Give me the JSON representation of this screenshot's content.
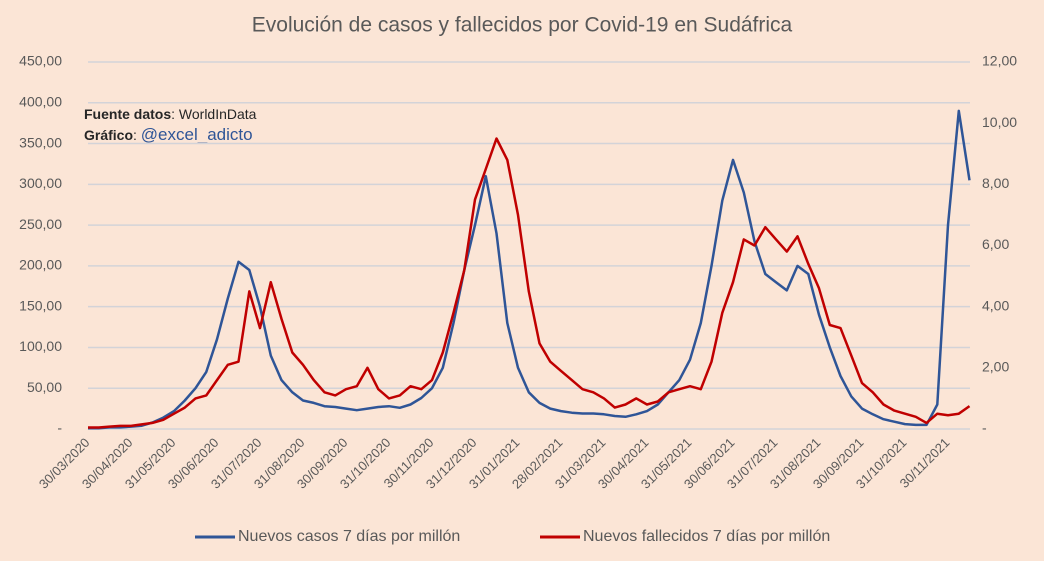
{
  "chart_data": {
    "type": "line",
    "title": "Evolución de casos y fallecidos por Covid-19 en Sudáfrica",
    "annotations": [
      {
        "label": "Fuente datos",
        "text": ": WorldInData"
      },
      {
        "label": "Gráfico",
        "text": ": ",
        "handle": "@excel_adicto"
      }
    ],
    "categories": [
      "30/03/2020",
      null,
      null,
      null,
      "30/04/2020",
      null,
      null,
      null,
      "31/05/2020",
      null,
      null,
      null,
      "30/06/2020",
      null,
      null,
      null,
      "31/07/2020",
      null,
      null,
      null,
      "31/08/2020",
      null,
      null,
      null,
      "30/09/2020",
      null,
      null,
      null,
      "31/10/2020",
      null,
      null,
      null,
      "30/11/2020",
      null,
      null,
      null,
      "31/12/2020",
      null,
      null,
      null,
      "31/01/2021",
      null,
      null,
      null,
      "28/02/2021",
      null,
      null,
      null,
      "31/03/2021",
      null,
      null,
      null,
      "30/04/2021",
      null,
      null,
      null,
      "31/05/2021",
      null,
      null,
      null,
      "30/06/2021",
      null,
      null,
      null,
      "31/07/2021",
      null,
      null,
      null,
      "31/08/2021",
      null,
      null,
      null,
      "30/09/2021",
      null,
      null,
      null,
      "31/10/2021",
      null,
      null,
      null,
      "30/11/2021",
      null,
      null
    ],
    "series": [
      {
        "name": "Nuevos casos 7 días por millón",
        "color": "#2f5597",
        "values": [
          1,
          1,
          2,
          2,
          3,
          4,
          8,
          14,
          22,
          35,
          50,
          70,
          110,
          160,
          205,
          195,
          150,
          90,
          60,
          45,
          35,
          32,
          28,
          27,
          25,
          23,
          25,
          27,
          28,
          26,
          30,
          38,
          50,
          75,
          130,
          195,
          250,
          310,
          240,
          130,
          75,
          45,
          32,
          25,
          22,
          20,
          19,
          19,
          18,
          16,
          15,
          18,
          22,
          30,
          45,
          60,
          85,
          130,
          200,
          280,
          330,
          290,
          230,
          190,
          180,
          170,
          200,
          190,
          140,
          100,
          65,
          40,
          25,
          18,
          12,
          9,
          6,
          5,
          5,
          30,
          250,
          390,
          305
        ]
      },
      {
        "name": "Nuevos fallecidos 7 días por millón",
        "color": "#c00000",
        "axis": "y2",
        "values": [
          0.05,
          0.05,
          0.08,
          0.1,
          0.1,
          0.15,
          0.2,
          0.3,
          0.5,
          0.7,
          1.0,
          1.1,
          1.6,
          2.1,
          2.2,
          4.5,
          3.3,
          4.8,
          3.6,
          2.5,
          2.1,
          1.6,
          1.2,
          1.1,
          1.3,
          1.4,
          2.0,
          1.3,
          1.0,
          1.1,
          1.4,
          1.3,
          1.6,
          2.5,
          3.8,
          5.2,
          7.5,
          8.5,
          9.5,
          8.8,
          7.0,
          4.5,
          2.8,
          2.2,
          1.9,
          1.6,
          1.3,
          1.2,
          1.0,
          0.7,
          0.8,
          1.0,
          0.8,
          0.9,
          1.2,
          1.3,
          1.4,
          1.3,
          2.2,
          3.8,
          4.8,
          6.2,
          6.0,
          6.6,
          6.2,
          5.8,
          6.3,
          5.4,
          4.6,
          3.4,
          3.3,
          2.4,
          1.5,
          1.2,
          0.8,
          0.6,
          0.5,
          0.4,
          0.2,
          0.5,
          0.45,
          0.5,
          0.75
        ]
      }
    ],
    "ylim": [
      0,
      450
    ],
    "yticks": [
      {
        "value": 0,
        "label": "-"
      },
      {
        "value": 50,
        "label": "50,00"
      },
      {
        "value": 100,
        "label": "100,00"
      },
      {
        "value": 150,
        "label": "150,00"
      },
      {
        "value": 200,
        "label": "200,00"
      },
      {
        "value": 250,
        "label": "250,00"
      },
      {
        "value": 300,
        "label": "300,00"
      },
      {
        "value": 350,
        "label": "350,00"
      },
      {
        "value": 400,
        "label": "400,00"
      },
      {
        "value": 450,
        "label": "450,00"
      }
    ],
    "y2lim": [
      0,
      12
    ],
    "y2ticks": [
      {
        "value": 0,
        "label": "-"
      },
      {
        "value": 2,
        "label": "2,00"
      },
      {
        "value": 4,
        "label": "4,00"
      },
      {
        "value": 6,
        "label": "6,00"
      },
      {
        "value": 8,
        "label": "8,00"
      },
      {
        "value": 10,
        "label": "10,00"
      },
      {
        "value": 12,
        "label": "12,00"
      }
    ],
    "grid": true,
    "legend": "bottom"
  }
}
